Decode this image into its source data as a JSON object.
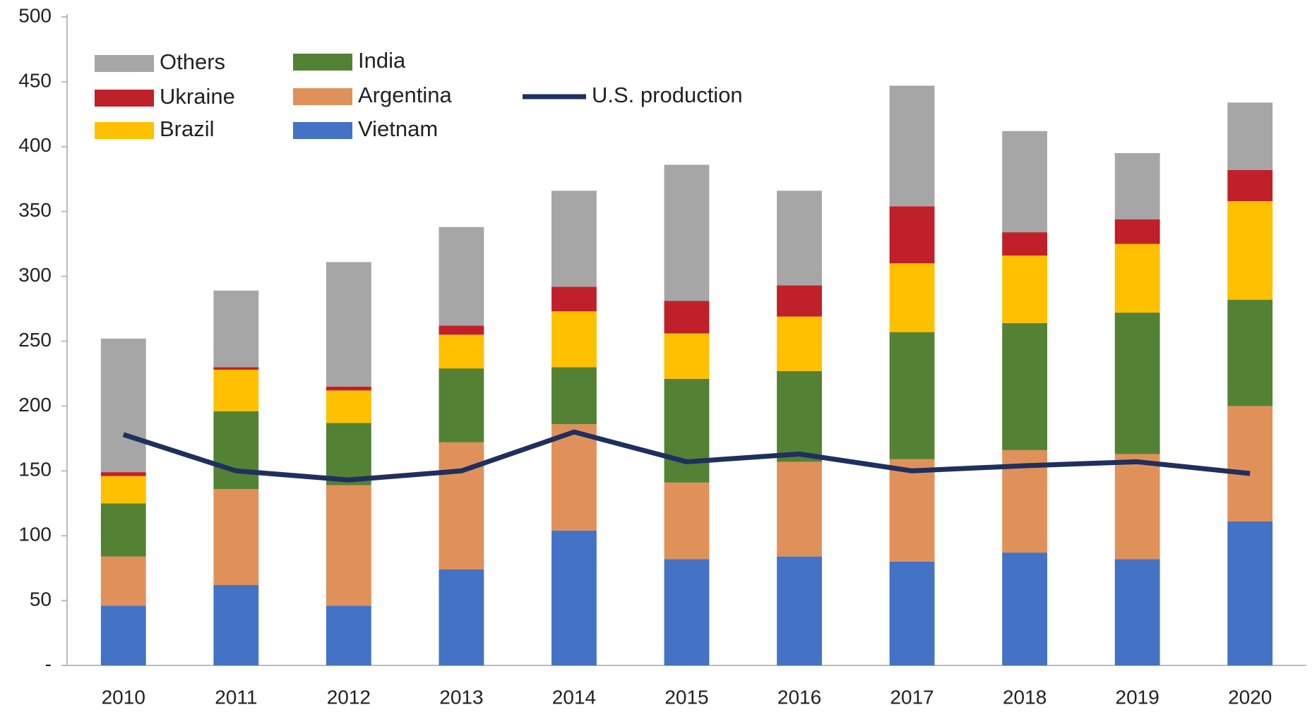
{
  "chart_data": {
    "type": "bar",
    "stacked": true,
    "categories": [
      "2010",
      "2011",
      "2012",
      "2013",
      "2014",
      "2015",
      "2016",
      "2017",
      "2018",
      "2019",
      "2020"
    ],
    "series": [
      {
        "name": "Vietnam",
        "color": "#4472c4",
        "values": [
          46,
          62,
          46,
          74,
          104,
          82,
          84,
          80,
          87,
          82,
          111
        ]
      },
      {
        "name": "Argentina",
        "color": "#e0915a",
        "values": [
          38,
          74,
          93,
          98,
          82,
          59,
          73,
          79,
          79,
          81,
          89
        ]
      },
      {
        "name": "India",
        "color": "#548235",
        "values": [
          41,
          60,
          48,
          57,
          44,
          80,
          70,
          98,
          98,
          109,
          82
        ]
      },
      {
        "name": "Brazil",
        "color": "#ffc000",
        "values": [
          21,
          32,
          25,
          26,
          43,
          35,
          42,
          53,
          52,
          53,
          76
        ]
      },
      {
        "name": "Ukraine",
        "color": "#c0202a",
        "values": [
          3,
          2,
          3,
          7,
          19,
          25,
          24,
          44,
          18,
          19,
          24
        ]
      },
      {
        "name": "Others",
        "color": "#a6a6a6",
        "values": [
          103,
          59,
          96,
          76,
          74,
          105,
          73,
          93,
          78,
          51,
          52
        ]
      },
      {
        "name": "U.S. production",
        "type": "line",
        "color": "#1f2f5e",
        "values": [
          178,
          150,
          143,
          150,
          180,
          157,
          163,
          150,
          154,
          157,
          148
        ]
      }
    ],
    "ylim": [
      0,
      500
    ],
    "yticks": [
      {
        "value": 0,
        "label": "-"
      },
      50,
      100,
      150,
      200,
      250,
      300,
      350,
      400,
      450,
      500
    ]
  }
}
